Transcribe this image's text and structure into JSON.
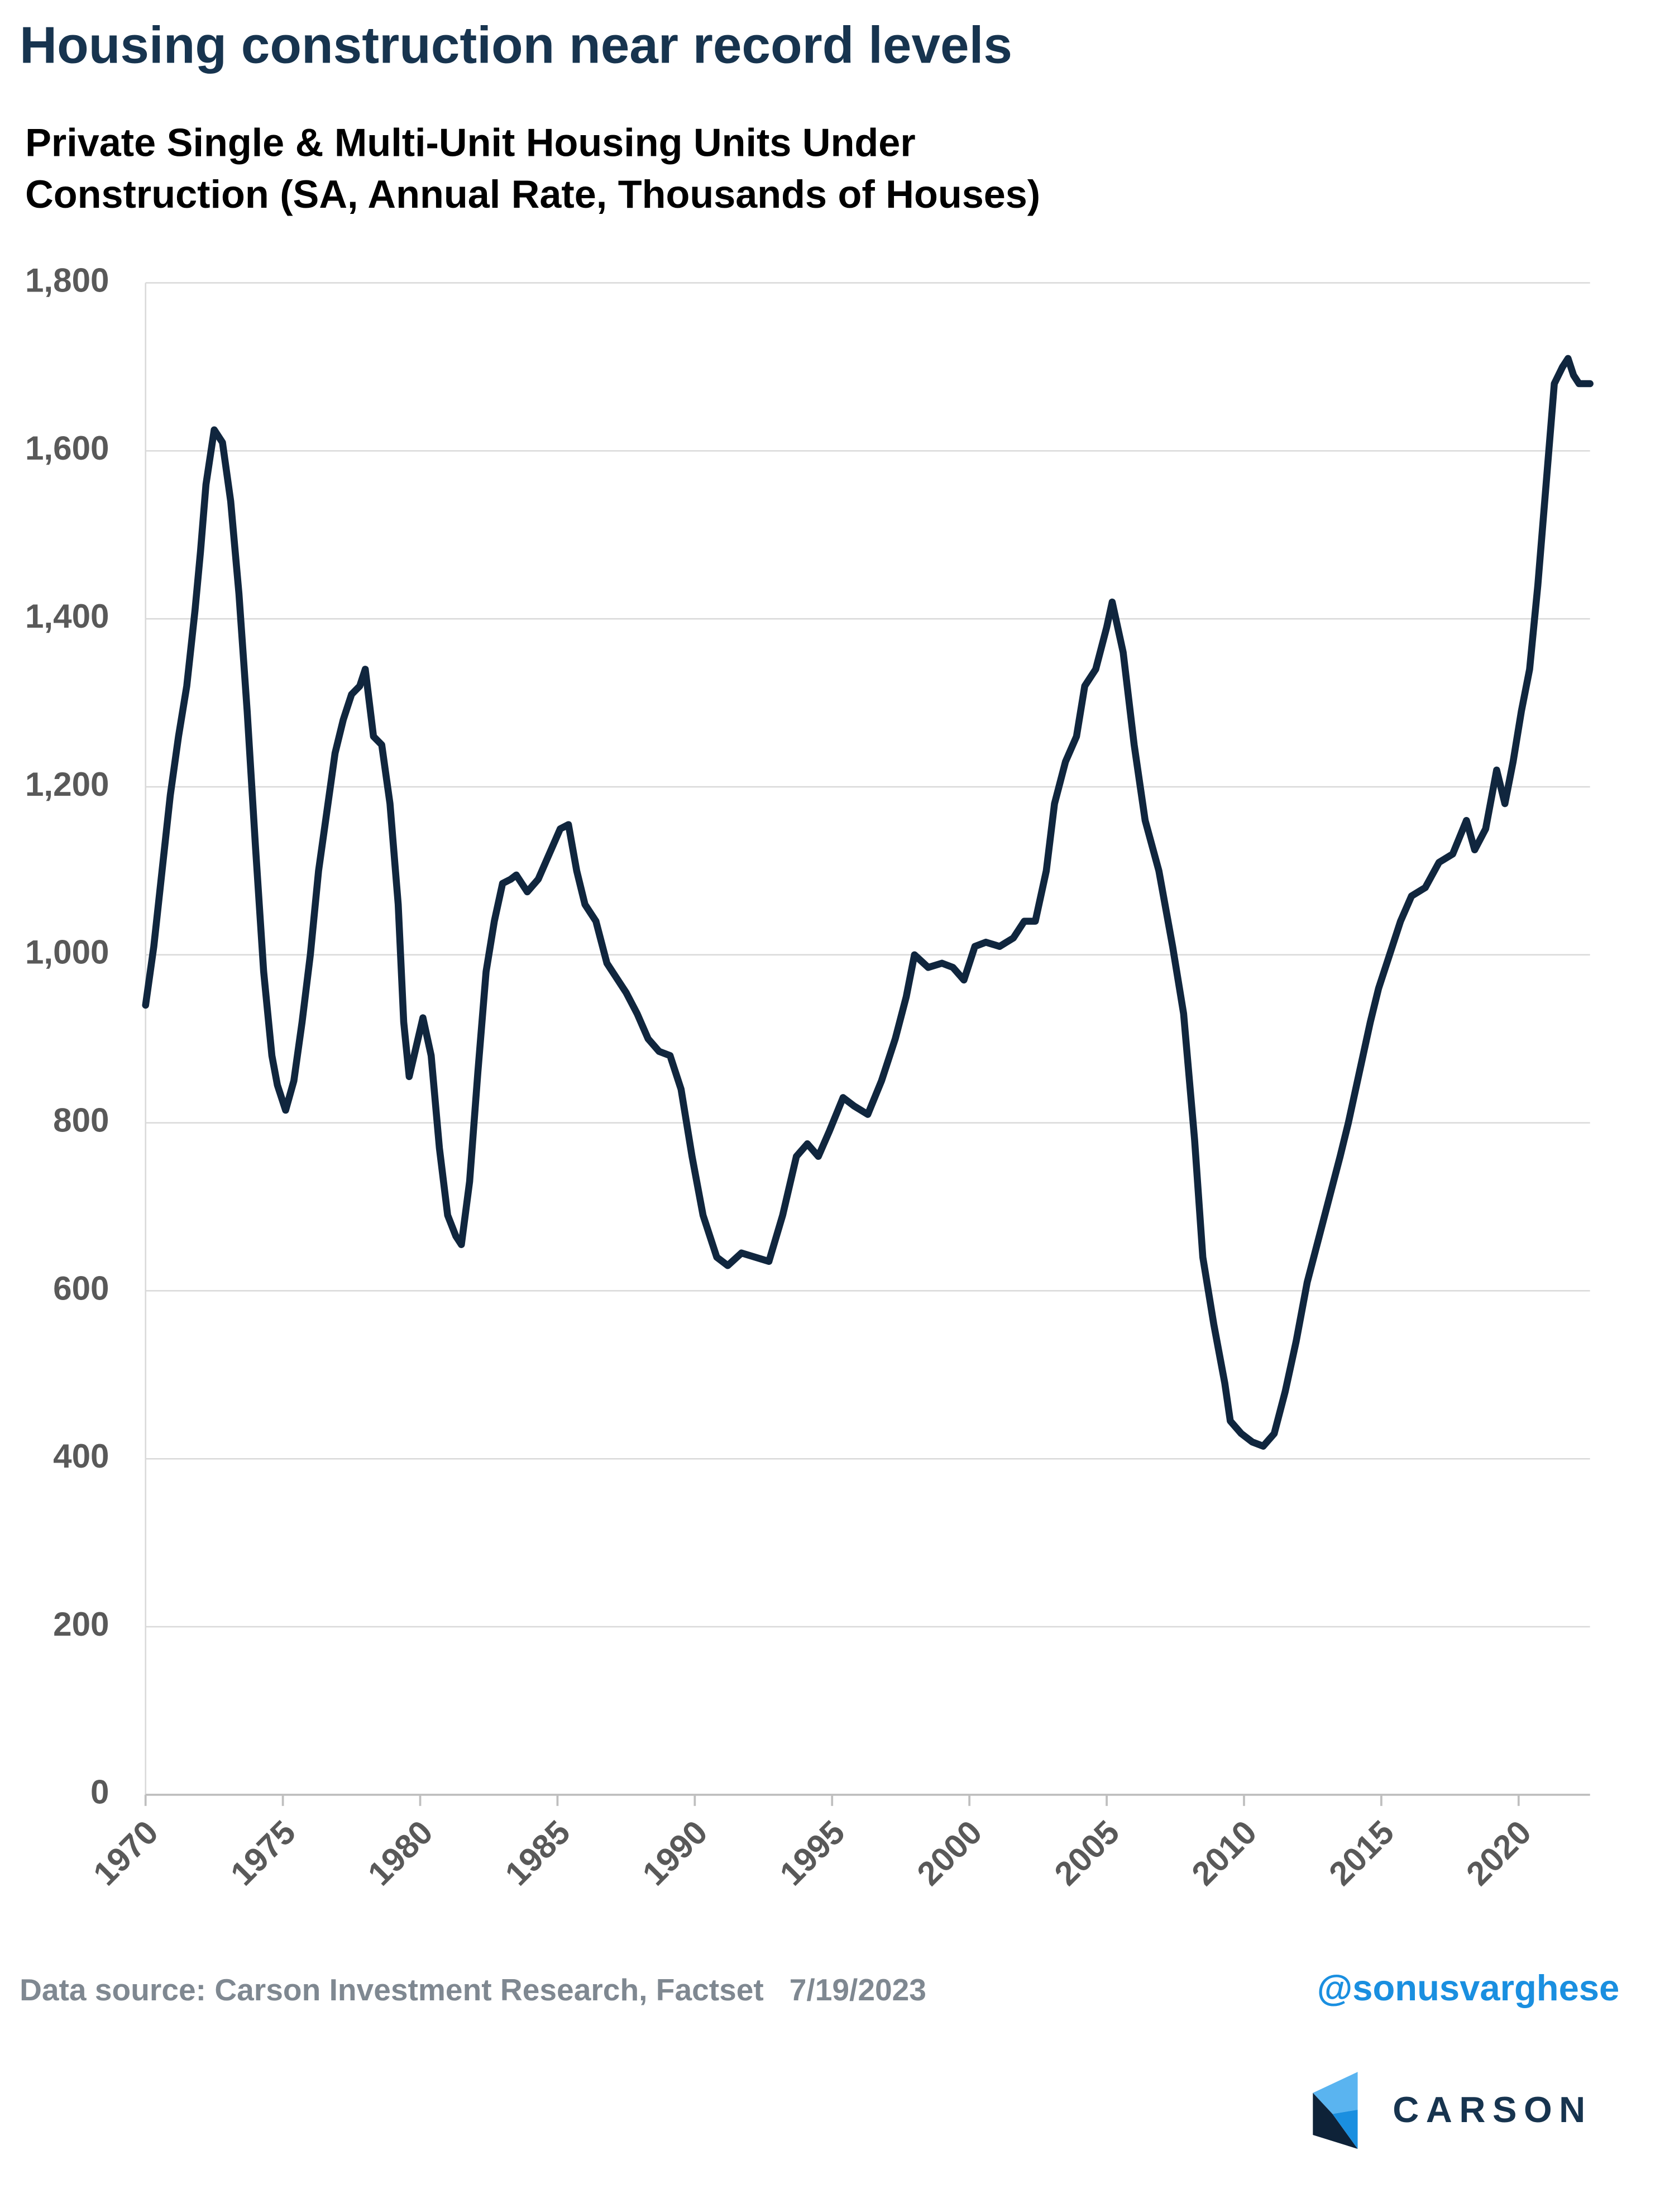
{
  "chart_data": {
    "type": "line",
    "title": "Housing construction near record levels",
    "subtitle": [
      "Private Single & Multi-Unit Housing Units Under",
      "Construction (SA, Annual Rate, Thousands of Houses)"
    ],
    "source": "Data source: Carson Investment Research, Factset   7/19/2023",
    "handle": "@sonusvarghese",
    "brand": "CARSON",
    "x": [
      1970.0,
      1970.3,
      1970.6,
      1970.9,
      1971.2,
      1971.5,
      1971.8,
      1972.0,
      1972.2,
      1972.5,
      1972.8,
      1973.1,
      1973.4,
      1973.7,
      1974.0,
      1974.3,
      1974.6,
      1974.8,
      1975.1,
      1975.4,
      1975.7,
      1976.0,
      1976.3,
      1976.6,
      1976.9,
      1977.2,
      1977.5,
      1977.8,
      1978.0,
      1978.3,
      1978.6,
      1978.9,
      1979.2,
      1979.4,
      1979.6,
      1980.1,
      1980.4,
      1980.7,
      1981.0,
      1981.3,
      1981.5,
      1981.8,
      1982.1,
      1982.4,
      1982.7,
      1983.0,
      1983.3,
      1983.5,
      1983.9,
      1984.3,
      1984.7,
      1985.1,
      1985.4,
      1985.7,
      1986.0,
      1986.4,
      1986.8,
      1987.1,
      1987.5,
      1987.9,
      1988.3,
      1988.7,
      1989.1,
      1989.5,
      1989.9,
      1990.3,
      1990.8,
      1991.2,
      1991.7,
      1992.2,
      1992.7,
      1993.2,
      1993.7,
      1994.1,
      1994.5,
      1994.9,
      1995.4,
      1995.8,
      1996.3,
      1996.8,
      1997.3,
      1997.7,
      1998.0,
      1998.5,
      1999.0,
      1999.4,
      1999.8,
      2000.2,
      2000.6,
      2001.1,
      2001.6,
      2002.0,
      2002.4,
      2002.8,
      2003.1,
      2003.5,
      2003.9,
      2004.2,
      2004.6,
      2005.0,
      2005.2,
      2005.6,
      2006.0,
      2006.4,
      2006.9,
      2007.4,
      2007.8,
      2008.2,
      2008.5,
      2008.9,
      2009.3,
      2009.5,
      2009.9,
      2010.3,
      2010.7,
      2011.1,
      2011.5,
      2011.9,
      2012.3,
      2012.7,
      2013.1,
      2013.5,
      2013.8,
      2014.2,
      2014.6,
      2014.9,
      2015.3,
      2015.7,
      2016.1,
      2016.6,
      2017.1,
      2017.6,
      2018.1,
      2018.4,
      2018.8,
      2019.2,
      2019.5,
      2019.8,
      2020.1,
      2020.4,
      2020.7,
      2021.0,
      2021.3,
      2021.6,
      2021.8,
      2022.0,
      2022.2,
      2022.6
    ],
    "series": [
      {
        "name": "Housing Units Under Construction",
        "color": "#10263e",
        "values": [
          940,
          1010,
          1100,
          1190,
          1260,
          1320,
          1410,
          1480,
          1560,
          1625,
          1610,
          1540,
          1430,
          1290,
          1130,
          980,
          880,
          845,
          815,
          850,
          920,
          1000,
          1100,
          1170,
          1240,
          1280,
          1310,
          1320,
          1340,
          1260,
          1250,
          1180,
          1060,
          920,
          855,
          925,
          880,
          770,
          690,
          665,
          655,
          730,
          860,
          980,
          1040,
          1085,
          1090,
          1095,
          1075,
          1090,
          1120,
          1150,
          1155,
          1100,
          1060,
          1040,
          990,
          975,
          955,
          930,
          900,
          885,
          880,
          840,
          760,
          690,
          640,
          630,
          645,
          640,
          635,
          690,
          760,
          775,
          760,
          790,
          830,
          820,
          810,
          850,
          900,
          950,
          1000,
          985,
          990,
          985,
          970,
          1010,
          1015,
          1010,
          1020,
          1040,
          1040,
          1100,
          1180,
          1230,
          1260,
          1320,
          1340,
          1390,
          1420,
          1360,
          1250,
          1160,
          1100,
          1010,
          930,
          780,
          640,
          560,
          490,
          445,
          430,
          420,
          415,
          430,
          480,
          540,
          610,
          660,
          710,
          760,
          800,
          860,
          920,
          960,
          1000,
          1040,
          1070,
          1080,
          1110,
          1120,
          1160,
          1125,
          1150,
          1220,
          1180,
          1230,
          1290,
          1340,
          1440,
          1560,
          1680,
          1700,
          1710,
          1690,
          1680,
          1680
        ]
      }
    ],
    "xlim": [
      1970,
      2022.6
    ],
    "xticks": [
      1970,
      1975,
      1980,
      1985,
      1990,
      1995,
      2000,
      2005,
      2010,
      2015,
      2020
    ],
    "ylim": [
      0,
      1800
    ],
    "yticks": [
      0,
      200,
      400,
      600,
      800,
      {
        "value": 1000,
        "label": "1,000"
      },
      {
        "value": 1200,
        "label": "1,200"
      },
      {
        "value": 1400,
        "label": "1,400"
      },
      {
        "value": 1600,
        "label": "1,600"
      },
      {
        "value": 1800,
        "label": "1,800"
      }
    ],
    "grid": true
  }
}
